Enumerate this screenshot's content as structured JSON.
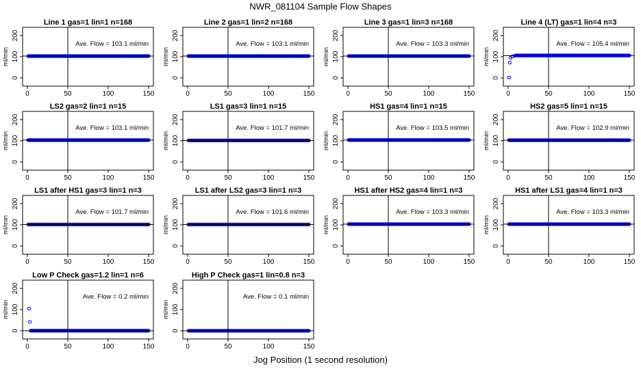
{
  "main_title": "NWR_081104  Sample Flow Shapes",
  "x_label": "Jog Position (1 second resolution)",
  "colors": {
    "points": "#0000ff",
    "lines": "#000000",
    "frame": "#000000"
  },
  "chart_data": [
    {
      "type": "scatter",
      "title": "Line 1 gas=1 lin=1 n=168",
      "annotation": "Ave. Flow =  103.1  ml/min",
      "ylabel": "ml/min",
      "xlim": [
        0,
        150
      ],
      "ylim": [
        0,
        200
      ],
      "xticks": [
        0,
        50,
        100,
        150
      ],
      "yticks": [
        0,
        100,
        200
      ],
      "vline_x": 50,
      "hline_y": 103.1,
      "lead": [],
      "steady_y": 103.1,
      "grid": false
    },
    {
      "type": "scatter",
      "title": "Line 2 gas=1 lin=2 n=168",
      "annotation": "Ave. Flow =  103.1  ml/min",
      "ylabel": "ml/min",
      "xlim": [
        0,
        150
      ],
      "ylim": [
        0,
        200
      ],
      "xticks": [
        0,
        50,
        100,
        150
      ],
      "yticks": [
        0,
        100,
        200
      ],
      "vline_x": 50,
      "hline_y": 103.1,
      "lead": [],
      "steady_y": 103.1,
      "grid": false
    },
    {
      "type": "scatter",
      "title": "Line 3 gas=1 lin=3 n=168",
      "annotation": "Ave. Flow =  103.3  ml/min",
      "ylabel": "ml/min",
      "xlim": [
        0,
        150
      ],
      "ylim": [
        0,
        200
      ],
      "xticks": [
        0,
        50,
        100,
        150
      ],
      "yticks": [
        0,
        100,
        200
      ],
      "vline_x": 50,
      "hline_y": 103.3,
      "lead": [],
      "steady_y": 103.3,
      "grid": false
    },
    {
      "type": "scatter",
      "title": "Line 4 (LT) gas=1 lin=4 n=3",
      "annotation": "Ave. Flow =  105.4  ml/min",
      "ylabel": "ml/min",
      "xlim": [
        0,
        150
      ],
      "ylim": [
        0,
        200
      ],
      "xticks": [
        0,
        50,
        100,
        150
      ],
      "yticks": [
        0,
        100,
        200
      ],
      "vline_x": 50,
      "hline_y": 105.4,
      "lead": [
        {
          "x": 1,
          "y": 2
        },
        {
          "x": 2,
          "y": 72
        },
        {
          "x": 3,
          "y": 95
        },
        {
          "x": 5,
          "y": 101
        },
        {
          "x": 8,
          "y": 104
        }
      ],
      "steady_y": 106,
      "grid": false
    },
    {
      "type": "scatter",
      "title": "LS2 gas=2 lin=1 n=15",
      "annotation": "Ave. Flow =  103.1  ml/min",
      "ylabel": "ml/min",
      "xlim": [
        0,
        150
      ],
      "ylim": [
        0,
        200
      ],
      "xticks": [
        0,
        50,
        100,
        150
      ],
      "yticks": [
        0,
        100,
        200
      ],
      "vline_x": 50,
      "hline_y": 103.1,
      "lead": [],
      "steady_y": 103.1,
      "grid": false
    },
    {
      "type": "scatter",
      "title": "LS1 gas=3 lin=1 n=15",
      "annotation": "Ave. Flow =  101.7  ml/min",
      "ylabel": "ml/min",
      "xlim": [
        0,
        150
      ],
      "ylim": [
        0,
        200
      ],
      "xticks": [
        0,
        50,
        100,
        150
      ],
      "yticks": [
        0,
        100,
        200
      ],
      "vline_x": 50,
      "hline_y": 101.7,
      "lead": [],
      "steady_y": 101.7,
      "grid": false
    },
    {
      "type": "scatter",
      "title": "HS1 gas=4 lin=1 n=15",
      "annotation": "Ave. Flow =  103.5  ml/min",
      "ylabel": "ml/min",
      "xlim": [
        0,
        150
      ],
      "ylim": [
        0,
        200
      ],
      "xticks": [
        0,
        50,
        100,
        150
      ],
      "yticks": [
        0,
        100,
        200
      ],
      "vline_x": 50,
      "hline_y": 103.5,
      "lead": [],
      "steady_y": 103.5,
      "grid": false
    },
    {
      "type": "scatter",
      "title": "HS2 gas=5 lin=1 n=15",
      "annotation": "Ave. Flow =  102.9  ml/min",
      "ylabel": "ml/min",
      "xlim": [
        0,
        150
      ],
      "ylim": [
        0,
        200
      ],
      "xticks": [
        0,
        50,
        100,
        150
      ],
      "yticks": [
        0,
        100,
        200
      ],
      "vline_x": 50,
      "hline_y": 102.9,
      "lead": [],
      "steady_y": 102.9,
      "grid": false
    },
    {
      "type": "scatter",
      "title": "LS1 after HS1 gas=3 lin=1 n=3",
      "annotation": "Ave. Flow =  101.7  ml/min",
      "ylabel": "ml/min",
      "xlim": [
        0,
        150
      ],
      "ylim": [
        0,
        200
      ],
      "xticks": [
        0,
        50,
        100,
        150
      ],
      "yticks": [
        0,
        100,
        200
      ],
      "vline_x": 50,
      "hline_y": 101.7,
      "lead": [],
      "steady_y": 101.7,
      "grid": false
    },
    {
      "type": "scatter",
      "title": "LS1 after LS2 gas=3 lin=1 n=3",
      "annotation": "Ave. Flow =  101.6  ml/min",
      "ylabel": "ml/min",
      "xlim": [
        0,
        150
      ],
      "ylim": [
        0,
        200
      ],
      "xticks": [
        0,
        50,
        100,
        150
      ],
      "yticks": [
        0,
        100,
        200
      ],
      "vline_x": 50,
      "hline_y": 101.6,
      "lead": [],
      "steady_y": 101.6,
      "grid": false
    },
    {
      "type": "scatter",
      "title": "HS1 after HS2 gas=4 lin=1 n=3",
      "annotation": "Ave. Flow =  103.3  ml/min",
      "ylabel": "ml/min",
      "xlim": [
        0,
        150
      ],
      "ylim": [
        0,
        200
      ],
      "xticks": [
        0,
        50,
        100,
        150
      ],
      "yticks": [
        0,
        100,
        200
      ],
      "vline_x": 50,
      "hline_y": 103.3,
      "lead": [],
      "steady_y": 103.3,
      "grid": false
    },
    {
      "type": "scatter",
      "title": "HS1 after LS1 gas=4 lin=1 n=3",
      "annotation": "Ave. Flow =  103.3  ml/min",
      "ylabel": "ml/min",
      "xlim": [
        0,
        150
      ],
      "ylim": [
        0,
        200
      ],
      "xticks": [
        0,
        50,
        100,
        150
      ],
      "yticks": [
        0,
        100,
        200
      ],
      "vline_x": 50,
      "hline_y": 103.3,
      "lead": [],
      "steady_y": 103.3,
      "grid": false
    },
    {
      "type": "scatter",
      "title": "Low P Check gas=1.2 lin=1 n=6",
      "annotation": "Ave. Flow =  0.2  ml/min",
      "ylabel": "ml/min",
      "xlim": [
        0,
        150
      ],
      "ylim": [
        0,
        200
      ],
      "xticks": [
        0,
        50,
        100,
        150
      ],
      "yticks": [
        0,
        100,
        200
      ],
      "vline_x": 50,
      "hline_y": 0.2,
      "lead": [
        {
          "x": 2,
          "y": 105
        },
        {
          "x": 3,
          "y": 42
        }
      ],
      "steady_y": 0.2,
      "grid": false
    },
    {
      "type": "scatter",
      "title": "High P Check gas=1 lin=0.8 n=3",
      "annotation": "Ave. Flow =  0.1  ml/min",
      "ylabel": "ml/min",
      "xlim": [
        0,
        150
      ],
      "ylim": [
        0,
        200
      ],
      "xticks": [
        0,
        50,
        100,
        150
      ],
      "yticks": [
        0,
        100,
        200
      ],
      "vline_x": 50,
      "hline_y": 0.1,
      "lead": [],
      "steady_y": 0.1,
      "grid": false
    }
  ]
}
